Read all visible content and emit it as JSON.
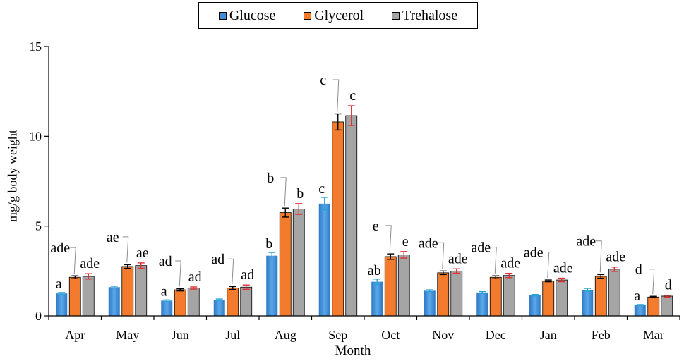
{
  "chart_data": {
    "type": "bar",
    "title": "",
    "xlabel": "Month",
    "ylabel": "mg/g body weight",
    "ylim": [
      0,
      15
    ],
    "yticks": [
      0,
      5,
      10,
      15
    ],
    "grid": false,
    "legend_position": "top-center",
    "categories": [
      "Apr",
      "May",
      "Jun",
      "Jul",
      "Aug",
      "Sep",
      "Oct",
      "Nov",
      "Dec",
      "Jan",
      "Feb",
      "Mar"
    ],
    "series": [
      {
        "name": "Glucose",
        "color": "#3f8fd6",
        "values": [
          1.25,
          1.6,
          0.85,
          0.9,
          3.35,
          6.25,
          1.9,
          1.4,
          1.3,
          1.15,
          1.45,
          0.6
        ],
        "errors": [
          0.05,
          0.05,
          0.04,
          0.04,
          0.18,
          0.35,
          0.15,
          0.05,
          0.05,
          0.04,
          0.08,
          0.03
        ],
        "labels": [
          "a",
          "",
          "a",
          "",
          "b",
          "c",
          "ab",
          "",
          "",
          "",
          "",
          "a"
        ]
      },
      {
        "name": "Glycerol",
        "color": "#f27b2e",
        "values": [
          2.15,
          2.75,
          1.45,
          1.55,
          5.75,
          10.8,
          3.3,
          2.4,
          2.15,
          1.95,
          2.2,
          1.05
        ],
        "errors": [
          0.08,
          0.1,
          0.06,
          0.08,
          0.25,
          0.45,
          0.15,
          0.1,
          0.08,
          0.05,
          0.1,
          0.04
        ],
        "labels": [
          "ade",
          "ae",
          "ad",
          "ad",
          "b",
          "c",
          "e",
          "ade",
          "ade",
          "ade",
          "ade",
          "d"
        ]
      },
      {
        "name": "Trehalose",
        "color": "#a5a5a5",
        "values": [
          2.2,
          2.8,
          1.55,
          1.6,
          5.95,
          11.15,
          3.4,
          2.5,
          2.25,
          2.0,
          2.6,
          1.1
        ],
        "errors": [
          0.15,
          0.15,
          0.06,
          0.12,
          0.3,
          0.55,
          0.18,
          0.12,
          0.12,
          0.1,
          0.12,
          0.05
        ],
        "labels": [
          "ade",
          "ae",
          "ad",
          "ad",
          "b",
          "c",
          "e",
          "ade",
          "ade",
          "ade",
          "ade",
          "d"
        ]
      }
    ]
  }
}
